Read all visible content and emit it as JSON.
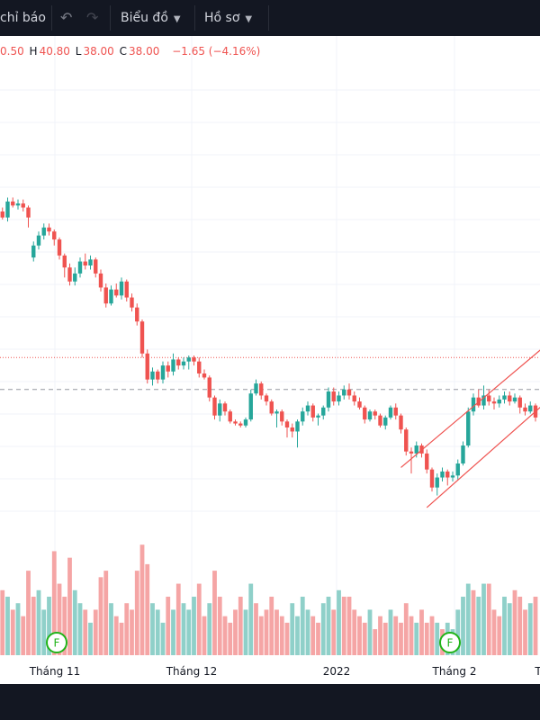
{
  "toolbar": {
    "indicators_label": "chỉ báo",
    "undo_icon": "undo-icon",
    "redo_icon": "redo-icon",
    "chart_type_label": "Biểu đồ",
    "profile_label": "Hồ sơ"
  },
  "ohlc": {
    "open": "0.50",
    "high_key": "H",
    "high": "40.80",
    "low_key": "L",
    "low": "38.00",
    "close_key": "C",
    "close": "38.00",
    "change": "−1.65 (−4.16%)"
  },
  "colors": {
    "up": "#26a69a",
    "down": "#ef5350",
    "vol_up": "#8fd0c9",
    "vol_down": "#f5a5a5",
    "trendline": "#ef5350",
    "grid": "#f0f3fa",
    "toolbar_bg": "#131722"
  },
  "chart_data": {
    "type": "candlestick",
    "x_ticks": [
      "Tháng 11",
      "Tháng 12",
      "2022",
      "Tháng 2",
      "T"
    ],
    "event_markers": [
      "F",
      "F"
    ],
    "candles": [
      [
        0,
        42.6,
        42.3,
        42.8,
        42.2
      ],
      [
        1,
        42.3,
        42.0,
        42.5,
        41.9
      ],
      [
        2,
        42.0,
        42.8,
        43.0,
        41.8
      ],
      [
        3,
        42.8,
        42.6,
        43.0,
        42.5
      ],
      [
        4,
        42.6,
        42.7,
        42.9,
        42.4
      ],
      [
        5,
        42.7,
        42.5,
        42.9,
        42.3
      ],
      [
        6,
        42.5,
        42.0,
        42.6,
        41.5
      ],
      [
        7,
        40.0,
        40.6,
        40.8,
        39.8
      ],
      [
        8,
        40.6,
        41.1,
        41.3,
        40.4
      ],
      [
        9,
        41.1,
        41.5,
        41.7,
        40.9
      ],
      [
        10,
        41.5,
        41.3,
        41.7,
        41.1
      ],
      [
        11,
        41.3,
        40.9,
        41.4,
        40.6
      ],
      [
        12,
        40.9,
        40.1,
        41.0,
        39.9
      ],
      [
        13,
        40.1,
        39.5,
        40.2,
        39.0
      ],
      [
        14,
        39.5,
        38.8,
        39.7,
        38.6
      ],
      [
        15,
        38.8,
        39.2,
        39.5,
        38.6
      ],
      [
        16,
        39.2,
        39.8,
        40.0,
        39.0
      ],
      [
        17,
        39.8,
        39.6,
        40.2,
        39.4
      ],
      [
        18,
        39.6,
        39.9,
        40.1,
        39.4
      ],
      [
        19,
        39.9,
        39.2,
        40.0,
        39.0
      ],
      [
        20,
        39.2,
        38.5,
        39.4,
        38.3
      ],
      [
        21,
        38.5,
        37.7,
        38.7,
        37.5
      ],
      [
        22,
        37.7,
        38.4,
        38.6,
        37.6
      ],
      [
        23,
        38.4,
        38.1,
        38.7,
        38.0
      ],
      [
        24,
        38.1,
        38.8,
        39.0,
        37.9
      ],
      [
        25,
        38.8,
        38.0,
        38.9,
        37.8
      ],
      [
        26,
        38.0,
        37.5,
        38.2,
        37.3
      ],
      [
        27,
        37.5,
        36.8,
        37.7,
        36.6
      ],
      [
        28,
        36.8,
        35.2,
        36.9,
        35.0
      ],
      [
        29,
        35.2,
        33.9,
        35.4,
        33.7
      ],
      [
        30,
        33.9,
        34.3,
        34.5,
        33.6
      ],
      [
        31,
        34.3,
        33.9,
        34.4,
        33.7
      ],
      [
        32,
        33.9,
        34.6,
        34.8,
        33.7
      ],
      [
        33,
        34.6,
        34.3,
        34.8,
        34.0
      ],
      [
        34,
        34.3,
        34.9,
        35.2,
        34.1
      ],
      [
        35,
        34.9,
        34.6,
        35.0,
        34.4
      ],
      [
        36,
        34.6,
        34.8,
        35.0,
        34.4
      ],
      [
        37,
        34.8,
        35.0,
        35.1,
        34.4
      ],
      [
        38,
        35.0,
        34.8,
        35.1,
        34.6
      ],
      [
        39,
        34.8,
        34.2,
        35.0,
        34.0
      ],
      [
        40,
        34.2,
        34.0,
        34.4,
        33.9
      ],
      [
        41,
        34.0,
        33.0,
        34.1,
        32.8
      ],
      [
        42,
        33.0,
        32.1,
        33.1,
        31.9
      ],
      [
        43,
        32.1,
        32.7,
        32.9,
        31.8
      ],
      [
        44,
        32.7,
        32.3,
        32.8,
        32.1
      ],
      [
        45,
        32.3,
        31.8,
        32.4,
        31.7
      ],
      [
        46,
        31.8,
        31.7,
        31.9,
        31.6
      ],
      [
        47,
        31.7,
        31.6,
        31.8,
        31.5
      ],
      [
        48,
        31.6,
        31.9,
        32.0,
        31.5
      ],
      [
        49,
        31.9,
        33.2,
        33.4,
        31.8
      ],
      [
        50,
        33.2,
        33.7,
        33.9,
        33.1
      ],
      [
        51,
        33.7,
        33.1,
        33.8,
        32.9
      ],
      [
        52,
        33.1,
        32.8,
        33.2,
        32.6
      ],
      [
        53,
        32.8,
        32.2,
        32.9,
        32.1
      ],
      [
        54,
        32.2,
        32.3,
        32.4,
        31.5
      ],
      [
        55,
        32.3,
        31.8,
        32.4,
        31.6
      ],
      [
        56,
        31.8,
        31.5,
        31.9,
        31.0
      ],
      [
        57,
        31.5,
        31.3,
        31.7,
        31.0
      ],
      [
        58,
        31.3,
        31.8,
        31.9,
        30.5
      ],
      [
        59,
        31.8,
        32.3,
        32.5,
        31.6
      ],
      [
        60,
        32.3,
        32.6,
        32.8,
        32.1
      ],
      [
        61,
        32.6,
        32.0,
        32.7,
        31.8
      ],
      [
        62,
        32.0,
        32.1,
        32.2,
        31.6
      ],
      [
        63,
        32.1,
        32.5,
        32.6,
        31.9
      ],
      [
        64,
        32.5,
        33.3,
        33.5,
        32.3
      ],
      [
        65,
        33.3,
        32.8,
        33.5,
        32.6
      ],
      [
        66,
        32.8,
        33.1,
        33.3,
        32.6
      ],
      [
        67,
        33.1,
        33.4,
        33.6,
        32.9
      ],
      [
        68,
        33.4,
        33.1,
        33.7,
        32.9
      ],
      [
        69,
        33.1,
        32.8,
        33.3,
        32.6
      ],
      [
        70,
        32.8,
        32.5,
        33.0,
        32.4
      ],
      [
        71,
        32.5,
        31.9,
        32.6,
        31.7
      ],
      [
        72,
        31.9,
        32.3,
        32.4,
        31.8
      ],
      [
        73,
        32.3,
        32.1,
        32.4,
        31.9
      ],
      [
        74,
        32.1,
        31.6,
        32.2,
        31.5
      ],
      [
        75,
        31.6,
        32.0,
        32.1,
        31.4
      ],
      [
        76,
        32.0,
        32.5,
        32.6,
        31.9
      ],
      [
        77,
        32.5,
        32.1,
        32.7,
        31.9
      ],
      [
        78,
        32.1,
        31.4,
        32.2,
        31.2
      ],
      [
        79,
        31.4,
        30.3,
        31.5,
        30.1
      ],
      [
        80,
        30.3,
        30.2,
        30.5,
        29.2
      ],
      [
        81,
        30.2,
        30.6,
        30.8,
        30.0
      ],
      [
        82,
        30.6,
        30.2,
        30.7,
        30.0
      ],
      [
        83,
        30.2,
        29.4,
        30.4,
        29.2
      ],
      [
        84,
        29.4,
        28.5,
        29.5,
        28.3
      ],
      [
        85,
        28.5,
        29.0,
        29.2,
        28.1
      ],
      [
        86,
        29.0,
        29.3,
        29.5,
        28.8
      ],
      [
        87,
        29.3,
        29.0,
        29.4,
        28.6
      ],
      [
        88,
        29.0,
        29.1,
        29.3,
        28.8
      ],
      [
        89,
        29.1,
        29.7,
        29.9,
        28.9
      ],
      [
        90,
        29.7,
        30.6,
        30.8,
        29.6
      ],
      [
        91,
        30.6,
        32.3,
        32.5,
        30.5
      ],
      [
        92,
        32.3,
        33.0,
        33.2,
        32.1
      ],
      [
        93,
        33.0,
        32.6,
        33.4,
        32.5
      ],
      [
        94,
        32.6,
        33.1,
        33.6,
        32.4
      ],
      [
        95,
        33.1,
        32.8,
        33.4,
        32.6
      ],
      [
        96,
        32.8,
        32.7,
        33.0,
        32.4
      ],
      [
        97,
        32.7,
        32.9,
        33.1,
        32.5
      ],
      [
        98,
        32.9,
        33.1,
        33.3,
        32.7
      ],
      [
        99,
        33.1,
        32.8,
        33.3,
        32.6
      ],
      [
        100,
        32.8,
        33.0,
        33.2,
        32.7
      ],
      [
        101,
        33.0,
        32.5,
        33.1,
        32.2
      ],
      [
        102,
        32.5,
        32.3,
        32.7,
        32.1
      ],
      [
        103,
        32.3,
        32.6,
        32.8,
        32.2
      ],
      [
        104,
        32.6,
        32.0,
        32.7,
        31.8
      ]
    ],
    "volume": [
      [
        0,
        5.5,
        "d"
      ],
      [
        1,
        5.0,
        "d"
      ],
      [
        2,
        4.5,
        "u"
      ],
      [
        3,
        3.5,
        "d"
      ],
      [
        4,
        4.0,
        "u"
      ],
      [
        5,
        3.0,
        "d"
      ],
      [
        6,
        6.5,
        "d"
      ],
      [
        7,
        4.5,
        "d"
      ],
      [
        8,
        5.0,
        "u"
      ],
      [
        9,
        3.5,
        "u"
      ],
      [
        10,
        4.5,
        "u"
      ],
      [
        11,
        8.0,
        "d"
      ],
      [
        12,
        5.5,
        "d"
      ],
      [
        13,
        4.5,
        "d"
      ],
      [
        14,
        7.5,
        "d"
      ],
      [
        15,
        5.0,
        "u"
      ],
      [
        16,
        4.0,
        "u"
      ],
      [
        17,
        3.5,
        "d"
      ],
      [
        18,
        2.5,
        "u"
      ],
      [
        19,
        3.5,
        "d"
      ],
      [
        20,
        6.0,
        "d"
      ],
      [
        21,
        6.5,
        "d"
      ],
      [
        22,
        4.0,
        "u"
      ],
      [
        23,
        3.0,
        "d"
      ],
      [
        24,
        2.5,
        "d"
      ],
      [
        25,
        4.0,
        "d"
      ],
      [
        26,
        3.5,
        "d"
      ],
      [
        27,
        6.5,
        "d"
      ],
      [
        28,
        8.5,
        "d"
      ],
      [
        29,
        7.0,
        "d"
      ],
      [
        30,
        4.0,
        "u"
      ],
      [
        31,
        3.5,
        "u"
      ],
      [
        32,
        2.5,
        "u"
      ],
      [
        33,
        4.5,
        "d"
      ],
      [
        34,
        3.5,
        "u"
      ],
      [
        35,
        5.5,
        "d"
      ],
      [
        36,
        4.0,
        "u"
      ],
      [
        37,
        3.5,
        "u"
      ],
      [
        38,
        4.5,
        "u"
      ],
      [
        39,
        5.5,
        "d"
      ],
      [
        40,
        3.0,
        "d"
      ],
      [
        41,
        4.0,
        "u"
      ],
      [
        42,
        6.5,
        "d"
      ],
      [
        43,
        4.5,
        "d"
      ],
      [
        44,
        3.0,
        "d"
      ],
      [
        45,
        2.5,
        "d"
      ],
      [
        46,
        3.5,
        "d"
      ],
      [
        47,
        4.5,
        "d"
      ],
      [
        48,
        3.5,
        "u"
      ],
      [
        49,
        5.5,
        "u"
      ],
      [
        50,
        4.0,
        "d"
      ],
      [
        51,
        3.0,
        "d"
      ],
      [
        52,
        3.5,
        "d"
      ],
      [
        53,
        4.5,
        "d"
      ],
      [
        54,
        3.5,
        "d"
      ],
      [
        55,
        3.0,
        "d"
      ],
      [
        56,
        2.5,
        "d"
      ],
      [
        57,
        4.0,
        "u"
      ],
      [
        58,
        3.0,
        "u"
      ],
      [
        59,
        4.5,
        "u"
      ],
      [
        60,
        3.5,
        "u"
      ],
      [
        61,
        3.0,
        "d"
      ],
      [
        62,
        2.5,
        "d"
      ],
      [
        63,
        4.0,
        "u"
      ],
      [
        64,
        4.5,
        "u"
      ],
      [
        65,
        3.5,
        "d"
      ],
      [
        66,
        5.0,
        "u"
      ],
      [
        67,
        4.5,
        "d"
      ],
      [
        68,
        4.5,
        "d"
      ],
      [
        69,
        3.5,
        "d"
      ],
      [
        70,
        3.0,
        "d"
      ],
      [
        71,
        2.5,
        "d"
      ],
      [
        72,
        3.5,
        "u"
      ],
      [
        73,
        2.0,
        "d"
      ],
      [
        74,
        3.0,
        "d"
      ],
      [
        75,
        2.5,
        "d"
      ],
      [
        76,
        3.5,
        "u"
      ],
      [
        77,
        3.0,
        "d"
      ],
      [
        78,
        2.5,
        "d"
      ],
      [
        79,
        4.0,
        "d"
      ],
      [
        80,
        3.0,
        "d"
      ],
      [
        81,
        2.5,
        "u"
      ],
      [
        82,
        3.5,
        "d"
      ],
      [
        83,
        2.5,
        "d"
      ],
      [
        84,
        3.0,
        "d"
      ],
      [
        85,
        2.5,
        "u"
      ],
      [
        86,
        2.0,
        "d"
      ],
      [
        87,
        2.5,
        "u"
      ],
      [
        88,
        2.0,
        "u"
      ],
      [
        89,
        3.5,
        "u"
      ],
      [
        90,
        4.5,
        "u"
      ],
      [
        91,
        5.5,
        "u"
      ],
      [
        92,
        5.0,
        "d"
      ],
      [
        93,
        4.5,
        "u"
      ],
      [
        94,
        5.5,
        "u"
      ],
      [
        95,
        5.5,
        "d"
      ],
      [
        96,
        3.5,
        "d"
      ],
      [
        97,
        3.0,
        "d"
      ],
      [
        98,
        4.5,
        "u"
      ],
      [
        99,
        4.0,
        "u"
      ],
      [
        100,
        5.0,
        "d"
      ],
      [
        101,
        4.5,
        "d"
      ],
      [
        102,
        3.5,
        "d"
      ],
      [
        103,
        4.0,
        "u"
      ],
      [
        104,
        4.5,
        "d"
      ]
    ],
    "ylim": [
      27,
      45
    ],
    "vol_max": 9,
    "ref_lines": [
      {
        "value": 35.0,
        "style": "dotted",
        "color": "#ef5350"
      },
      {
        "value": 33.4,
        "style": "dashed",
        "color": "#9598a1"
      }
    ],
    "trendlines": [
      {
        "from": [
          78,
          29.5
        ],
        "to": [
          111,
          36.7
        ]
      },
      {
        "from": [
          83,
          27.5
        ],
        "to": [
          111,
          33.9
        ]
      }
    ]
  }
}
